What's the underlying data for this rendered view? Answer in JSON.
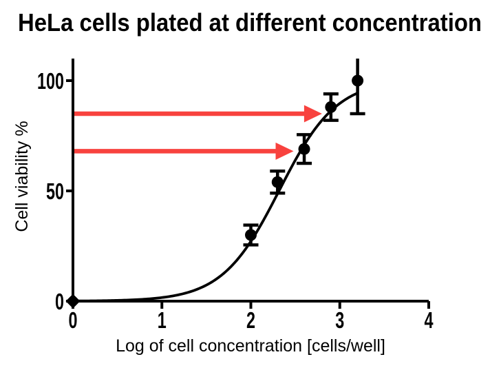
{
  "title": "HeLa cells plated at different concentration",
  "colors": {
    "plot_black": "#000000",
    "arrow_red": "#F8423E",
    "background": "#FFFFFF"
  },
  "chart_data": {
    "type": "scatter",
    "title": "HeLa cells plated at different concentration",
    "xlabel": "Log of cell concentration [cells/well]",
    "ylabel": "Cell viability %",
    "xlim": [
      0,
      4
    ],
    "ylim": [
      0,
      110
    ],
    "x_ticks": [
      "0",
      "1",
      "2",
      "3",
      "4"
    ],
    "y_ticks": [
      "0",
      "50",
      "100"
    ],
    "grid": false,
    "legend": "none",
    "points": [
      {
        "x": 0.0,
        "y": 0,
        "err_plus": 0,
        "err_minus": 0,
        "marker": "diamond"
      },
      {
        "x": 2.0,
        "y": 30,
        "err_plus": 4.5,
        "err_minus": 4.5,
        "marker": "circle"
      },
      {
        "x": 2.3,
        "y": 54,
        "err_plus": 5,
        "err_minus": 5,
        "marker": "circle"
      },
      {
        "x": 2.6,
        "y": 69,
        "err_plus": 6.5,
        "err_minus": 6.5,
        "marker": "circle"
      },
      {
        "x": 2.9,
        "y": 88,
        "err_plus": 6,
        "err_minus": 6,
        "marker": "circle"
      },
      {
        "x": 3.2,
        "y": 100,
        "err_plus": 10,
        "err_minus": 15,
        "marker": "circle",
        "err_plus_clipped": true
      }
    ],
    "fit_curve": {
      "model": "logistic-sigmoid",
      "top": 100.5,
      "hill_slope": 1.35,
      "log_ec50": 2.32,
      "x_start": 0,
      "x_end": 3.2
    },
    "annotations": [
      {
        "type": "horizontal-arrow",
        "y": 85,
        "x_from": 0,
        "x_to": 2.8,
        "color": "#F8423E"
      },
      {
        "type": "horizontal-arrow",
        "y": 68,
        "x_from": 0,
        "x_to": 2.48,
        "color": "#F8423E"
      }
    ]
  }
}
